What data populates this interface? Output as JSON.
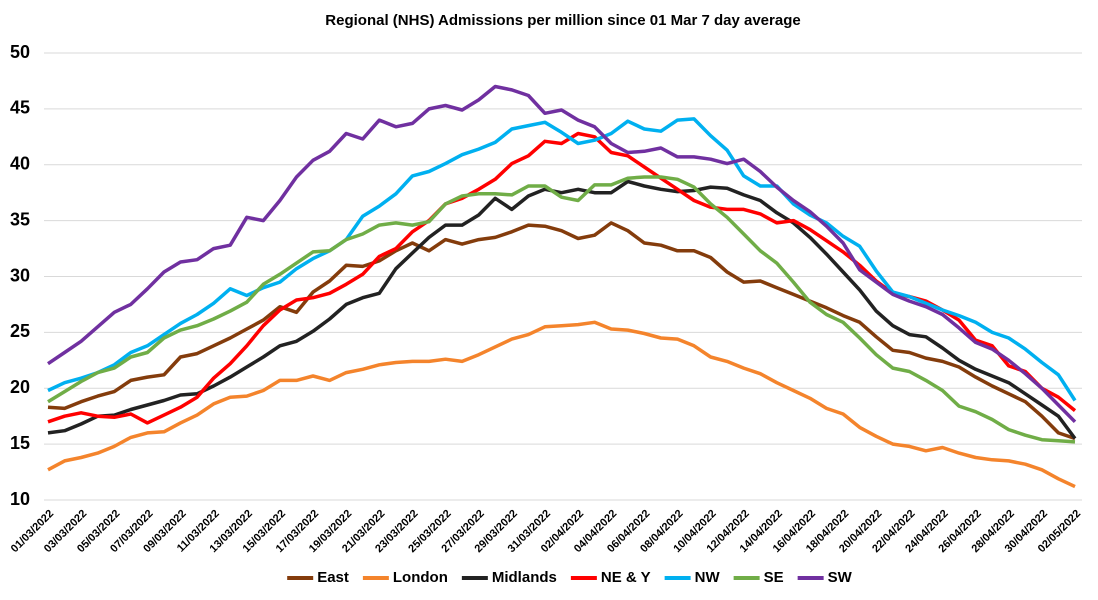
{
  "chart_data": {
    "type": "line",
    "title": "Regional (NHS) Admissions per million since 01 Mar 7 day average",
    "categories": [
      "01/03/2022",
      null,
      "03/03/2022",
      null,
      "05/03/2022",
      null,
      "07/03/2022",
      null,
      "09/03/2022",
      null,
      "11/03/2022",
      null,
      "13/03/2022",
      null,
      "15/03/2022",
      null,
      "17/03/2022",
      null,
      "19/03/2022",
      null,
      "21/03/2022",
      null,
      "23/03/2022",
      null,
      "25/03/2022",
      null,
      "27/03/2022",
      null,
      "29/03/2022",
      null,
      "31/03/2022",
      null,
      "02/04/2022",
      null,
      "04/04/2022",
      null,
      "06/04/2022",
      null,
      "08/04/2022",
      null,
      "10/04/2022",
      null,
      "12/04/2022",
      null,
      "14/04/2022",
      null,
      "16/04/2022",
      null,
      "18/04/2022",
      null,
      "20/04/2022",
      null,
      "22/04/2022",
      null,
      "24/04/2022",
      null,
      "26/04/2022",
      null,
      "28/04/2022",
      null,
      "30/04/2022",
      null,
      "02/05/2022"
    ],
    "series": [
      {
        "name": "East",
        "color": "#843c0c",
        "values": [
          18.3,
          18.2,
          18.8,
          19.3,
          19.7,
          20.7,
          21.0,
          21.2,
          22.8,
          23.1,
          23.8,
          24.5,
          25.3,
          26.1,
          27.3,
          26.8,
          28.6,
          29.6,
          31.0,
          30.9,
          31.4,
          32.3,
          33.0,
          32.3,
          33.3,
          32.9,
          33.3,
          33.5,
          34.0,
          34.6,
          34.5,
          34.1,
          33.4,
          33.7,
          34.8,
          34.1,
          33.0,
          32.8,
          32.3,
          32.3,
          31.7,
          30.4,
          29.5,
          29.6,
          29.0,
          28.4,
          27.8,
          27.2,
          26.5,
          25.9,
          24.6,
          23.4,
          23.2,
          22.7,
          22.4,
          21.9,
          21.0,
          20.2,
          19.5,
          18.8,
          17.5,
          16.0,
          15.5
        ]
      },
      {
        "name": "London",
        "color": "#f4842c",
        "values": [
          12.7,
          13.5,
          13.8,
          14.2,
          14.8,
          15.6,
          16.0,
          16.1,
          16.9,
          17.6,
          18.6,
          19.2,
          19.3,
          19.8,
          20.7,
          20.7,
          21.1,
          20.7,
          21.4,
          21.7,
          22.1,
          22.3,
          22.4,
          22.4,
          22.6,
          22.4,
          23.0,
          23.7,
          24.4,
          24.8,
          25.5,
          25.6,
          25.7,
          25.9,
          25.3,
          25.2,
          24.9,
          24.5,
          24.4,
          23.8,
          22.8,
          22.4,
          21.8,
          21.3,
          20.5,
          19.8,
          19.1,
          18.2,
          17.7,
          16.5,
          15.7,
          15.0,
          14.8,
          14.4,
          14.7,
          14.2,
          13.8,
          13.6,
          13.5,
          13.2,
          12.7,
          11.9,
          11.2
        ]
      },
      {
        "name": "Midlands",
        "color": "#222222",
        "values": [
          16.0,
          16.2,
          16.8,
          17.5,
          17.6,
          18.1,
          18.5,
          18.9,
          19.4,
          19.5,
          20.2,
          21.0,
          21.9,
          22.8,
          23.8,
          24.2,
          25.1,
          26.2,
          27.5,
          28.1,
          28.5,
          30.7,
          32.1,
          33.5,
          34.6,
          34.6,
          35.5,
          37.0,
          36.0,
          37.2,
          37.8,
          37.5,
          37.8,
          37.5,
          37.5,
          38.5,
          38.1,
          37.8,
          37.6,
          37.7,
          38.0,
          37.9,
          37.3,
          36.8,
          35.7,
          34.8,
          33.5,
          32.0,
          30.4,
          28.8,
          26.9,
          25.6,
          24.8,
          24.6,
          23.6,
          22.5,
          21.7,
          21.1,
          20.5,
          19.5,
          18.5,
          17.5,
          15.5
        ]
      },
      {
        "name": "NE & Y",
        "color": "#ff0000",
        "values": [
          17.0,
          17.5,
          17.8,
          17.5,
          17.4,
          17.7,
          16.9,
          17.6,
          18.3,
          19.2,
          20.9,
          22.2,
          23.8,
          25.6,
          27.0,
          27.9,
          28.1,
          28.5,
          29.3,
          30.2,
          31.8,
          32.5,
          34.0,
          35.0,
          36.5,
          37.0,
          37.8,
          38.7,
          40.1,
          40.8,
          42.1,
          41.9,
          42.8,
          42.5,
          41.1,
          40.8,
          39.8,
          38.8,
          37.8,
          36.8,
          36.2,
          36.0,
          36.0,
          35.6,
          34.8,
          35.0,
          34.2,
          33.2,
          32.2,
          31.0,
          29.6,
          28.5,
          28.2,
          27.8,
          27.0,
          26.1,
          24.3,
          23.8,
          22.0,
          21.5,
          20.0,
          19.2,
          18.0
        ]
      },
      {
        "name": "NW",
        "color": "#00b0f0",
        "values": [
          19.8,
          20.5,
          20.9,
          21.4,
          22.1,
          23.2,
          23.8,
          24.8,
          25.8,
          26.6,
          27.6,
          28.9,
          28.3,
          29.0,
          29.5,
          30.7,
          31.6,
          32.3,
          33.3,
          35.4,
          36.3,
          37.4,
          39.0,
          39.4,
          40.1,
          40.9,
          41.4,
          42.0,
          43.2,
          43.5,
          43.8,
          42.9,
          41.9,
          42.2,
          42.8,
          43.9,
          43.2,
          43.0,
          44.0,
          44.1,
          42.6,
          41.3,
          39.0,
          38.1,
          38.1,
          36.5,
          35.5,
          34.8,
          33.6,
          32.7,
          30.5,
          28.6,
          28.2,
          27.6,
          27.0,
          26.5,
          25.9,
          25.0,
          24.5,
          23.5,
          22.3,
          21.2,
          18.9
        ]
      },
      {
        "name": "SE",
        "color": "#70ad47",
        "values": [
          18.8,
          19.7,
          20.6,
          21.4,
          21.8,
          22.8,
          23.2,
          24.5,
          25.2,
          25.6,
          26.2,
          26.9,
          27.7,
          29.3,
          30.2,
          31.2,
          32.2,
          32.3,
          33.3,
          33.8,
          34.6,
          34.8,
          34.6,
          34.9,
          36.5,
          37.2,
          37.4,
          37.4,
          37.3,
          38.1,
          38.1,
          37.1,
          36.8,
          38.2,
          38.2,
          38.8,
          38.9,
          38.9,
          38.7,
          38.0,
          36.5,
          35.3,
          33.8,
          32.3,
          31.2,
          29.5,
          27.7,
          26.6,
          25.9,
          24.5,
          23.0,
          21.8,
          21.5,
          20.7,
          19.8,
          18.4,
          17.9,
          17.2,
          16.3,
          15.8,
          15.4,
          15.3,
          15.2
        ]
      },
      {
        "name": "SW",
        "color": "#7030a0",
        "values": [
          22.2,
          23.2,
          24.2,
          25.5,
          26.8,
          27.5,
          28.9,
          30.4,
          31.3,
          31.5,
          32.5,
          32.8,
          35.3,
          35.0,
          36.8,
          38.9,
          40.4,
          41.2,
          42.8,
          42.3,
          44.0,
          43.4,
          43.7,
          45.0,
          45.3,
          44.9,
          45.8,
          47.0,
          46.7,
          46.2,
          44.6,
          44.9,
          44.0,
          43.4,
          41.9,
          41.1,
          41.2,
          41.5,
          40.7,
          40.7,
          40.5,
          40.1,
          40.5,
          39.4,
          38.0,
          36.8,
          35.8,
          34.5,
          33.0,
          30.6,
          29.5,
          28.4,
          27.8,
          27.3,
          26.6,
          25.4,
          24.1,
          23.5,
          22.5,
          21.3,
          20.0,
          18.5,
          17.0
        ]
      }
    ],
    "ylim": [
      10,
      50
    ],
    "yticks": [
      10,
      15,
      20,
      25,
      30,
      35,
      40,
      45,
      50
    ],
    "grid": true,
    "legend": "bottom"
  }
}
